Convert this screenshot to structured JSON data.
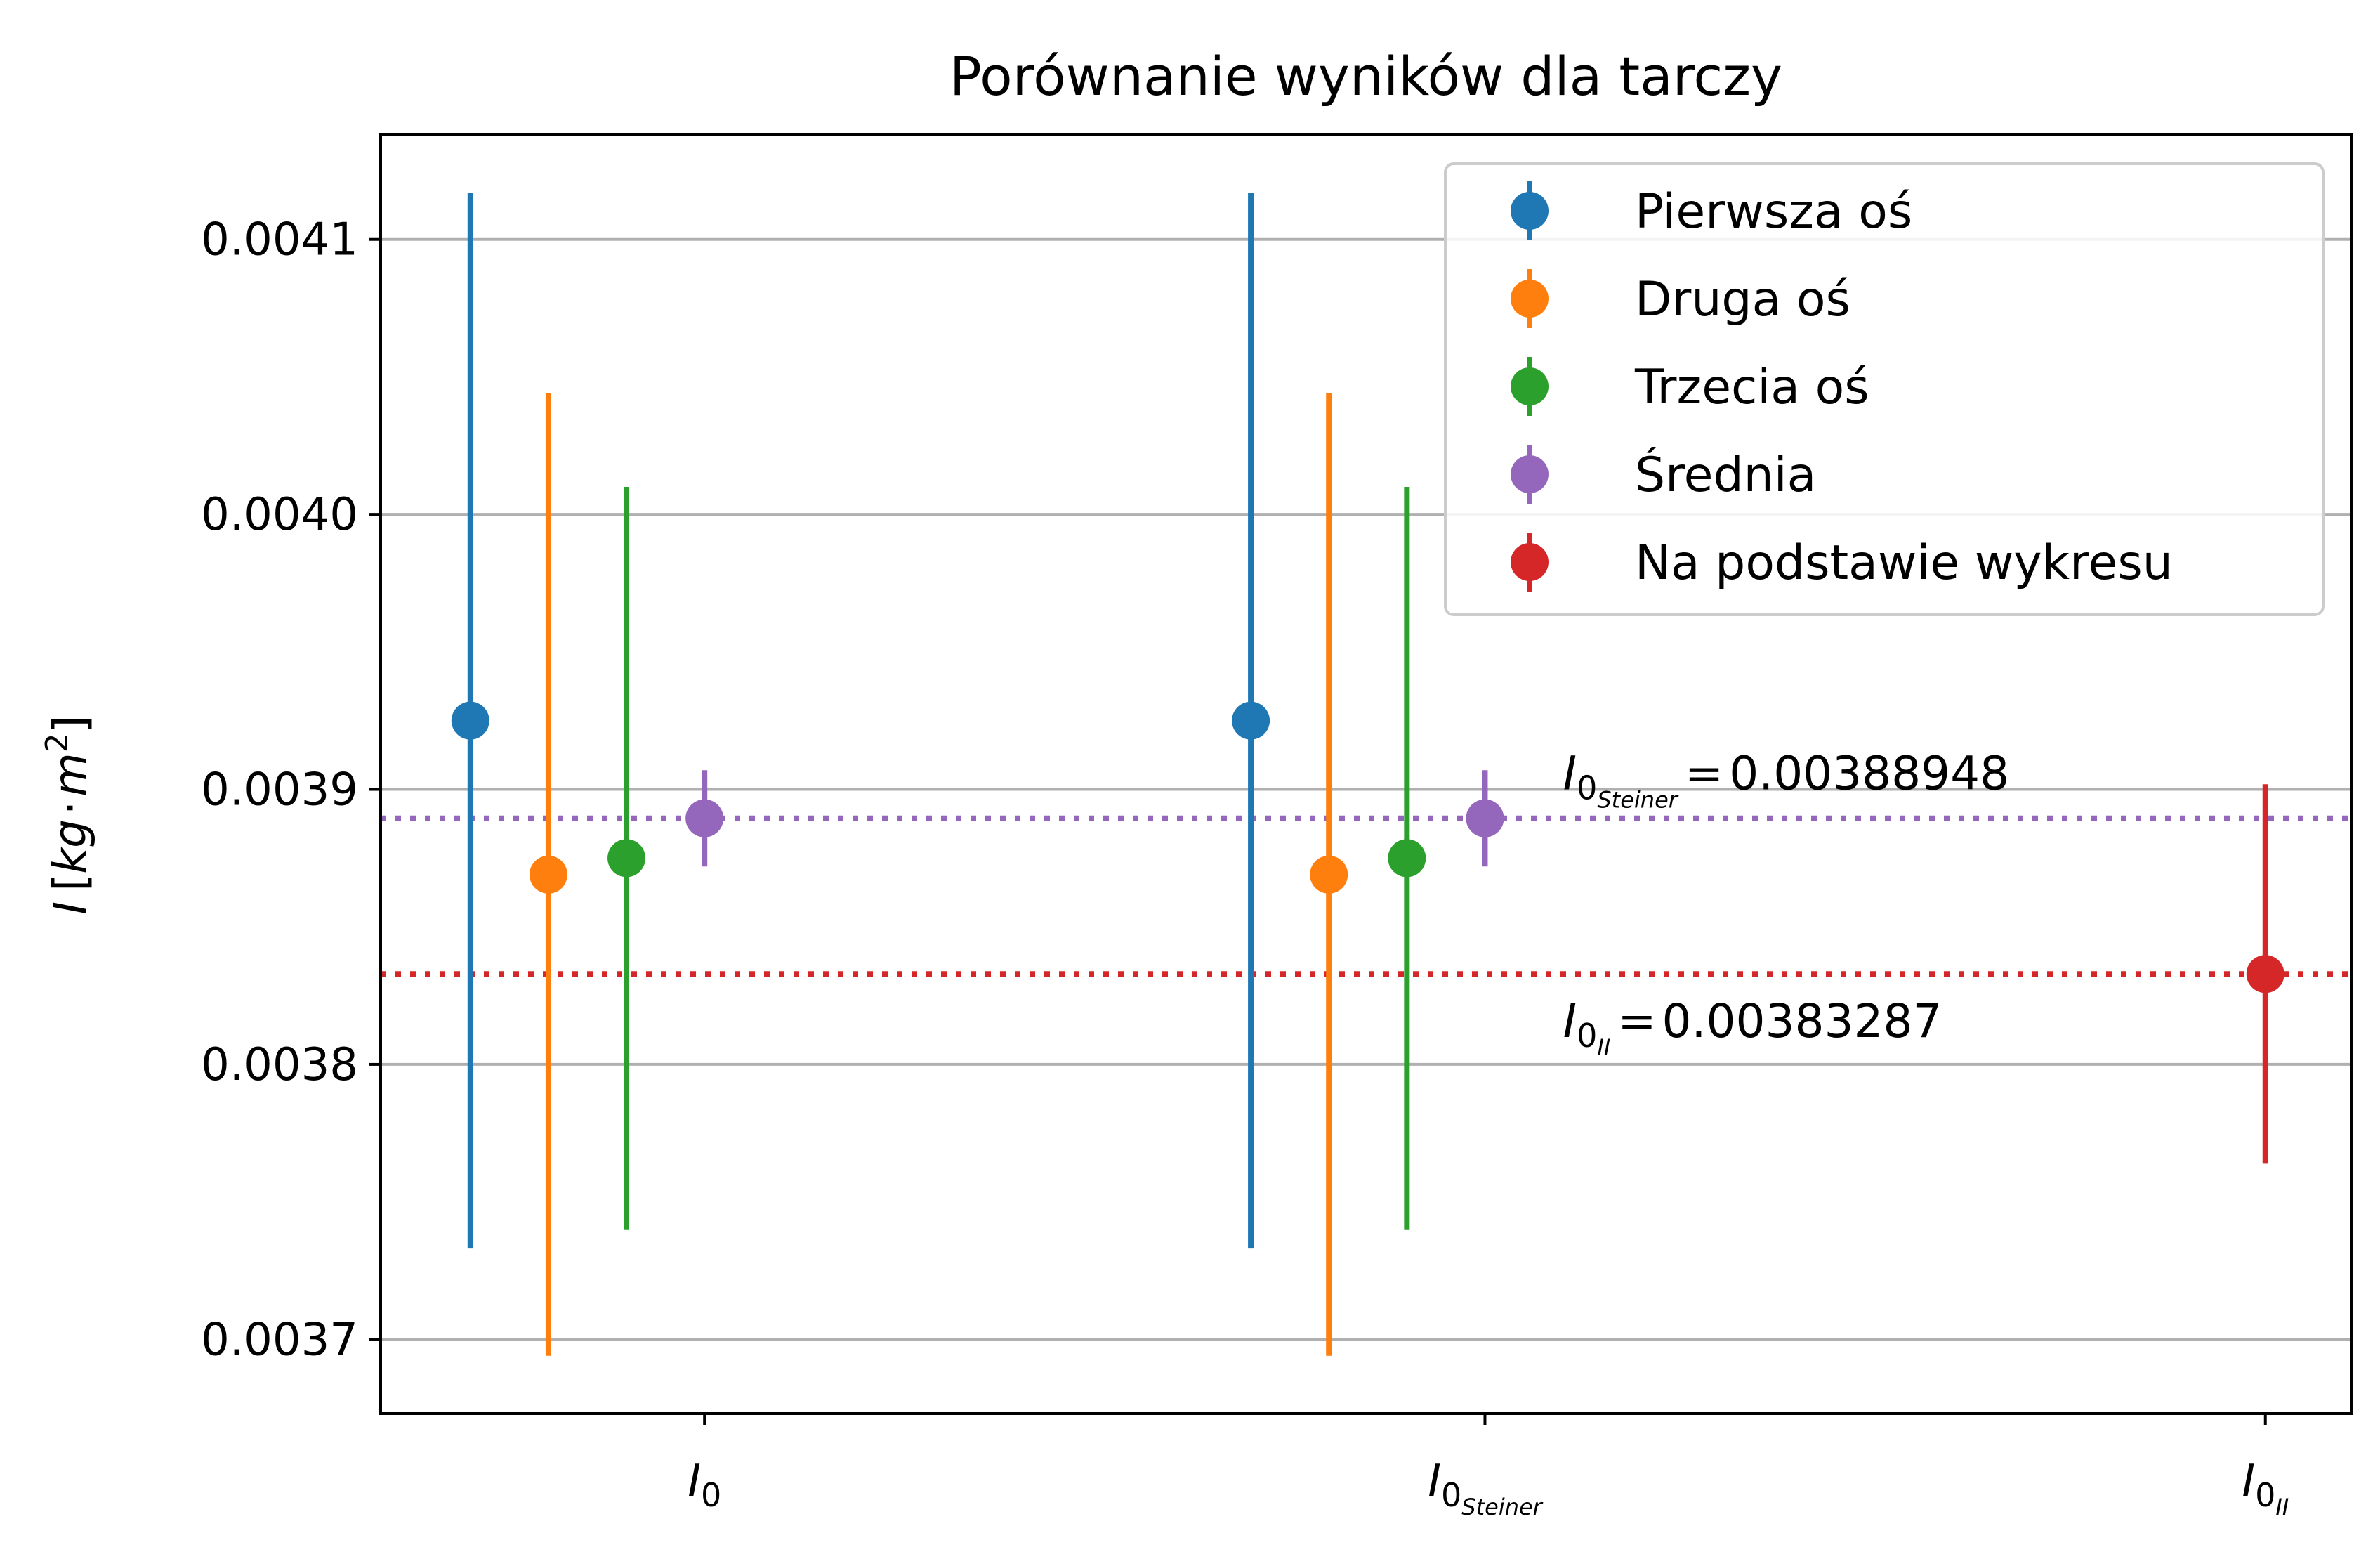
{
  "chart_data": {
    "type": "scatter",
    "title": "Porównanie wyników dla tarczy",
    "ylabel": {
      "main": "I",
      "unit_open": "[",
      "unit_kg": "kg",
      "unit_dot": "·",
      "unit_m": "m",
      "unit_exp": "2",
      "unit_close": "]"
    },
    "xlabel": "",
    "ylim": [
      0.003673,
      0.004138
    ],
    "y_ticks": [
      "0.0037",
      "0.0038",
      "0.0039",
      "0.0040",
      "0.0041"
    ],
    "y_tick_values": [
      0.0037,
      0.0038,
      0.0039,
      0.004,
      0.0041
    ],
    "x_ticks": [
      {
        "base": "I",
        "sub": "0",
        "subsub": ""
      },
      {
        "base": "I",
        "sub": "0",
        "subsub": "Steiner"
      },
      {
        "base": "I",
        "sub": "0",
        "subsub": "II"
      }
    ],
    "x_tick_values": [
      0,
      1,
      2
    ],
    "xlim": [
      -0.415,
      2.11
    ],
    "grid": "y",
    "legend_position": "top-right",
    "series": [
      {
        "name": "Pierwsza oś",
        "color": "#1f77b4",
        "points": [
          {
            "x": -0.3,
            "y": 0.003925,
            "yerr": 0.000192
          },
          {
            "x": 0.7,
            "y": 0.003925,
            "yerr": 0.000192
          }
        ]
      },
      {
        "name": "Druga oś",
        "color": "#ff7f0e",
        "points": [
          {
            "x": -0.2,
            "y": 0.003869,
            "yerr": 0.000175
          },
          {
            "x": 0.8,
            "y": 0.003869,
            "yerr": 0.000175
          }
        ]
      },
      {
        "name": "Trzecia oś",
        "color": "#2ca02c",
        "points": [
          {
            "x": -0.1,
            "y": 0.003875,
            "yerr": 0.000135
          },
          {
            "x": 0.9,
            "y": 0.003875,
            "yerr": 0.000135
          }
        ]
      },
      {
        "name": "Średnia",
        "color": "#9467bd",
        "points": [
          {
            "x": 0.0,
            "y": 0.00388948,
            "yerr": 1.75e-05
          },
          {
            "x": 1.0,
            "y": 0.00388948,
            "yerr": 1.75e-05
          }
        ]
      },
      {
        "name": "Na podstawie wykresu",
        "color": "#d62728",
        "points": [
          {
            "x": 2.0,
            "y": 0.00383287,
            "yerr": 6.9e-05
          }
        ]
      }
    ],
    "hlines": [
      {
        "y": 0.00388948,
        "color": "#9467bd",
        "style": "dotted"
      },
      {
        "y": 0.00383287,
        "color": "#d62728",
        "style": "dotted"
      }
    ],
    "annotations": [
      {
        "base": "I",
        "sub": "0",
        "subsub": "Steiner",
        "eq": "=",
        "value": "0.00388948",
        "x": 1.1,
        "y": 0.0039
      },
      {
        "base": "I",
        "sub": "0",
        "subsub": "II",
        "eq": "=",
        "value": "0.00383287",
        "x": 1.1,
        "y": 0.00381
      }
    ]
  },
  "colors": {
    "grid": "#b0b0b0",
    "axis": "#000000",
    "legend_border": "#cccccc"
  }
}
